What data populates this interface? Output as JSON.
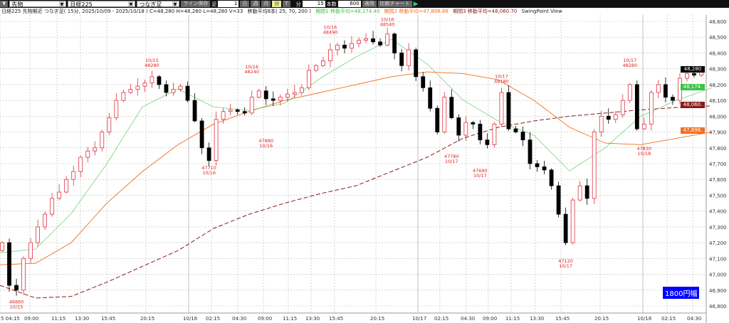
{
  "toolbar": {
    "menu": "▼",
    "market": "先物",
    "index": "日経225",
    "chain": "つなぎ足",
    "save_line": "ライン保存",
    "bar_label": "足",
    "bar_value": "1",
    "periods": [
      "日",
      "週",
      "月",
      "分",
      "T"
    ],
    "active_period": "分",
    "minute_label": "分",
    "minute_value": "15",
    "count_label": "本数",
    "count_value": "600",
    "apply": "適用",
    "compare": "比較チャート",
    "flag_icon": "green-flag-icon"
  },
  "header": {
    "title": "日経225 先物期近 つなぎ足( 15分, 2025/10/09 - 2025/10/18 ) C=48,280 H=48,280 L=48,280 V=33",
    "ma_title": "移動平均8本( 25, 70, 200 )",
    "ma1": "期間1 移動平均=48,174.40",
    "ma2": "期間2 移動平均=47,898.88",
    "ma3": "期間3 移動平均=48,060.70",
    "view": "SwingPoint View"
  },
  "colors": {
    "ma1": "#3cc24a",
    "ma2": "#f07020",
    "ma3": "#8b1a1a",
    "up": "#e03040",
    "down": "#000000",
    "annotation": "#e02020"
  },
  "chart_data": {
    "type": "candlestick",
    "ylim": [
      46800,
      48600
    ],
    "yticks": [
      "48,600",
      "48,500",
      "48,400",
      "48,300",
      "48,200",
      "48,100",
      "48,000",
      "47,900",
      "47,800",
      "47,700",
      "47,600",
      "47,500",
      "47,400",
      "47,300",
      "47,200",
      "47,100",
      "47,000",
      "46,900",
      "46,800"
    ],
    "ytick_values": [
      48600,
      48500,
      48400,
      48300,
      48200,
      48100,
      48000,
      47900,
      47800,
      47700,
      47600,
      47500,
      47400,
      47300,
      47200,
      47100,
      47000,
      46900,
      46800
    ],
    "xticks": [
      {
        "t": "5 04:15",
        "x": 0
      },
      {
        "t": "09:00",
        "x": 42
      },
      {
        "t": "11:15",
        "x": 80
      },
      {
        "t": "13:30",
        "x": 113
      },
      {
        "t": "15:45",
        "x": 150
      },
      {
        "t": "20:15",
        "x": 205
      },
      {
        "t": "10/16",
        "x": 265,
        "day": true
      },
      {
        "t": "02:15",
        "x": 297
      },
      {
        "t": "04:30",
        "x": 334
      },
      {
        "t": "09:00",
        "x": 370
      },
      {
        "t": "11:15",
        "x": 405
      },
      {
        "t": "13:30",
        "x": 437
      },
      {
        "t": "15:45",
        "x": 470
      },
      {
        "t": "20:15",
        "x": 528
      },
      {
        "t": "10/17",
        "x": 587,
        "day": true
      },
      {
        "t": "02:15",
        "x": 618
      },
      {
        "t": "04:30",
        "x": 655
      },
      {
        "t": "09:00",
        "x": 686
      },
      {
        "t": "11:15",
        "x": 718
      },
      {
        "t": "13:30",
        "x": 752
      },
      {
        "t": "15:45",
        "x": 788
      },
      {
        "t": "20:15",
        "x": 843
      },
      {
        "t": "10/18",
        "x": 903,
        "day": true
      },
      {
        "t": "02:15",
        "x": 937
      },
      {
        "t": "04:30",
        "x": 973
      }
    ],
    "closes": [
      47200,
      46930,
      46900,
      47100,
      47200,
      47300,
      47380,
      47480,
      47520,
      47600,
      47650,
      47740,
      47780,
      47800,
      47900,
      47990,
      48100,
      48150,
      48170,
      48190,
      48210,
      48250,
      48200,
      48150,
      48170,
      48190,
      48100,
      47970,
      47800,
      47720,
      47980,
      48030,
      48040,
      48030,
      48020,
      48120,
      48160,
      48110,
      48100,
      48120,
      48140,
      48150,
      48180,
      48290,
      48320,
      48350,
      48420,
      48450,
      48430,
      48460,
      48480,
      48490,
      48470,
      48450,
      48520,
      48400,
      48320,
      48420,
      48250,
      48180,
      48050,
      47900,
      48120,
      47990,
      47880,
      47960,
      47950,
      47850,
      47820,
      47950,
      48150,
      47920,
      47900,
      47850,
      47700,
      47680,
      47660,
      47560,
      47380,
      47200,
      47470,
      47560,
      47480,
      47900,
      48000,
      47980,
      48010,
      48100,
      48200,
      47920,
      47950,
      48150,
      48200,
      48120,
      48100,
      48240,
      48270,
      48260,
      48280
    ],
    "ma25": [
      47136,
      47160,
      47384,
      47699,
      48059,
      48172,
      48059,
      48037,
      48082,
      48240,
      48375,
      48487,
      48330,
      48104,
      47969,
      47879,
      47654,
      47800,
      48000,
      48100,
      48180
    ],
    "ma70": [
      47060,
      47070,
      47200,
      47450,
      47650,
      47820,
      47950,
      48030,
      48100,
      48150,
      48200,
      48250,
      48280,
      48270,
      48230,
      48100,
      47930,
      47830,
      47820,
      47860,
      47900
    ],
    "ma200": [
      46930,
      46850,
      46860,
      46950,
      47050,
      47150,
      47290,
      47380,
      47450,
      47510,
      47560,
      47650,
      47740,
      47860,
      47930,
      47970,
      48000,
      48020,
      48040,
      48055,
      48065
    ],
    "swing_points": [
      {
        "date": "10/15",
        "price": "48280",
        "type": "high",
        "i": 21
      },
      {
        "date": "10/16",
        "price": "48240",
        "type": "high",
        "i": 35
      },
      {
        "date": "10/16",
        "price": "48490",
        "type": "high",
        "i": 46
      },
      {
        "date": "10/16",
        "price": "48540",
        "type": "high",
        "i": 54
      },
      {
        "date": "10/17",
        "price": "48180",
        "type": "high",
        "i": 70
      },
      {
        "date": "10/17",
        "price": "48280",
        "type": "high",
        "i": 88
      },
      {
        "date": "10/15",
        "price": "46860",
        "type": "low",
        "i": 2
      },
      {
        "date": "10/16",
        "price": "47710",
        "type": "low",
        "i": 29
      },
      {
        "date": "10/16",
        "price": "47880",
        "type": "low",
        "i": 37
      },
      {
        "date": "10/17",
        "price": "47780",
        "type": "low",
        "i": 63
      },
      {
        "date": "10/17",
        "price": "47690",
        "type": "low",
        "i": 67
      },
      {
        "date": "10/17",
        "price": "47120",
        "type": "low",
        "i": 79
      },
      {
        "date": "10/18",
        "price": "47830",
        "type": "low",
        "i": 90
      }
    ]
  },
  "tags": {
    "last": "48,280",
    "ma1": "48,174.",
    "ma3": "48,060.",
    "ma2": "47,898."
  },
  "range_label": "1800円幅"
}
